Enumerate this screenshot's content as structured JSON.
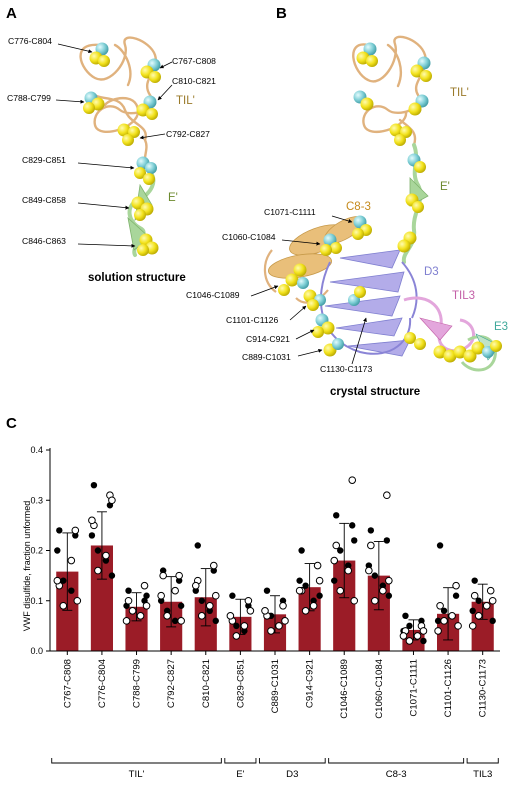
{
  "figure": {
    "panels": {
      "a": {
        "letter": "A",
        "caption": "solution structure",
        "callouts": [
          "C776-C804",
          "C767-C808",
          "C810-C821",
          "C788-C799",
          "C792-C827",
          "C829-C851",
          "C849-C858",
          "C846-C863"
        ],
        "domain_labels": [
          {
            "text": "TIL'",
            "color": "#9a7a2a"
          },
          {
            "text": "E'",
            "color": "#6d8a2e"
          }
        ]
      },
      "b": {
        "letter": "B",
        "caption": "crystal structure",
        "callouts": [
          "C1071-C1111",
          "C1060-C1084",
          "C1046-C1089",
          "C1101-C1126",
          "C914-C921",
          "C889-C1031",
          "C1130-C1173"
        ],
        "domain_labels": [
          {
            "text": "TIL'",
            "color": "#9a7a2a"
          },
          {
            "text": "E'",
            "color": "#6d8a2e"
          },
          {
            "text": "C8-3",
            "color": "#c58a1c"
          },
          {
            "text": "D3",
            "color": "#7f7fd0"
          },
          {
            "text": "TIL3",
            "color": "#c460a8"
          },
          {
            "text": "E3",
            "color": "#3fa89a"
          }
        ]
      },
      "c": {
        "letter": "C"
      }
    },
    "colors": {
      "bar": "#9b1c27",
      "sulfur": "#f2e21c",
      "cysteine_cyan": "#7fcfd6",
      "til_ribbon": "#e0b27e",
      "e_ribbon": "#a9d69b",
      "d3_ribbon": "#a8a2e6",
      "til3_ribbon": "#e3a6dc"
    }
  },
  "chart_data": {
    "type": "bar",
    "ylabel": "VWF disulfide, fraction unformed",
    "ylim": [
      0,
      0.4
    ],
    "yticks": [
      "0.0",
      "0.1",
      "0.2",
      "0.3",
      "0.4"
    ],
    "categories": [
      "C767-C808",
      "C776-C804",
      "C788-C799",
      "C792-C827",
      "C810-C821",
      "C829-C851",
      "C889-C1031",
      "C914-C921",
      "C1046-C1089",
      "C1060-C1084",
      "C1071-C1111",
      "C1101-C1126",
      "C1130-C1173"
    ],
    "values": [
      0.158,
      0.21,
      0.088,
      0.098,
      0.107,
      0.068,
      0.073,
      0.127,
      0.18,
      0.15,
      0.042,
      0.074,
      0.098
    ],
    "sd": [
      0.077,
      0.067,
      0.028,
      0.05,
      0.057,
      0.035,
      0.037,
      0.047,
      0.074,
      0.068,
      0.02,
      0.052,
      0.035
    ],
    "groups": [
      {
        "label": "TIL'",
        "from": 0,
        "to": 4
      },
      {
        "label": "E'",
        "from": 5,
        "to": 5
      },
      {
        "label": "D3",
        "from": 6,
        "to": 7
      },
      {
        "label": "C8-3",
        "from": 8,
        "to": 11
      },
      {
        "label": "TIL3",
        "from": 12,
        "to": 12
      }
    ],
    "points": [
      {
        "filled": [
          0.24,
          0.23,
          0.14,
          0.12,
          0.2,
          0.1
        ],
        "open": [
          0.24,
          0.13,
          0.18,
          0.09,
          0.1,
          0.14
        ]
      },
      {
        "filled": [
          0.33,
          0.29,
          0.2,
          0.18,
          0.23,
          0.15
        ],
        "open": [
          0.31,
          0.25,
          0.19,
          0.16,
          0.3,
          0.26
        ]
      },
      {
        "filled": [
          0.12,
          0.1,
          0.08,
          0.07,
          0.09,
          0.11
        ],
        "open": [
          0.13,
          0.1,
          0.07,
          0.08,
          0.09,
          0.06
        ]
      },
      {
        "filled": [
          0.16,
          0.14,
          0.08,
          0.06,
          0.1,
          0.09
        ],
        "open": [
          0.15,
          0.15,
          0.12,
          0.07,
          0.06,
          0.11
        ]
      },
      {
        "filled": [
          0.21,
          0.16,
          0.1,
          0.08,
          0.12,
          0.06
        ],
        "open": [
          0.17,
          0.14,
          0.09,
          0.07,
          0.11,
          0.13
        ]
      },
      {
        "filled": [
          0.11,
          0.09,
          0.05,
          0.04,
          0.07,
          0.08
        ],
        "open": [
          0.1,
          0.06,
          0.05,
          0.03,
          0.08,
          0.07
        ]
      },
      {
        "filled": [
          0.12,
          0.1,
          0.07,
          0.05,
          0.08,
          0.06
        ],
        "open": [
          0.09,
          0.07,
          0.05,
          0.04,
          0.06,
          0.08
        ]
      },
      {
        "filled": [
          0.2,
          0.17,
          0.13,
          0.1,
          0.14,
          0.11
        ],
        "open": [
          0.17,
          0.12,
          0.09,
          0.08,
          0.14,
          0.12
        ]
      },
      {
        "filled": [
          0.27,
          0.25,
          0.2,
          0.17,
          0.14,
          0.22
        ],
        "open": [
          0.34,
          0.21,
          0.16,
          0.12,
          0.1,
          0.18
        ]
      },
      {
        "filled": [
          0.24,
          0.22,
          0.15,
          0.13,
          0.17,
          0.11
        ],
        "open": [
          0.31,
          0.21,
          0.12,
          0.1,
          0.14,
          0.16
        ]
      },
      {
        "filled": [
          0.07,
          0.06,
          0.05,
          0.03,
          0.04,
          0.02
        ],
        "open": [
          0.05,
          0.04,
          0.03,
          0.02,
          0.04,
          0.03
        ]
      },
      {
        "filled": [
          0.21,
          0.11,
          0.08,
          0.07,
          0.06,
          0.05
        ],
        "open": [
          0.13,
          0.09,
          0.07,
          0.06,
          0.05,
          0.04
        ]
      },
      {
        "filled": [
          0.14,
          0.12,
          0.1,
          0.09,
          0.08,
          0.06
        ],
        "open": [
          0.12,
          0.11,
          0.09,
          0.07,
          0.1,
          0.05
        ]
      }
    ]
  }
}
